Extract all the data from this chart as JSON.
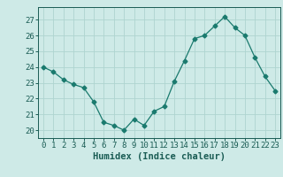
{
  "x": [
    0,
    1,
    2,
    3,
    4,
    5,
    6,
    7,
    8,
    9,
    10,
    11,
    12,
    13,
    14,
    15,
    16,
    17,
    18,
    19,
    20,
    21,
    22,
    23
  ],
  "y": [
    24.0,
    23.7,
    23.2,
    22.9,
    22.7,
    21.8,
    20.5,
    20.3,
    20.0,
    20.7,
    20.3,
    21.2,
    21.5,
    23.1,
    24.4,
    25.8,
    26.0,
    26.6,
    27.2,
    26.5,
    26.0,
    24.6,
    23.4,
    22.5
  ],
  "line_color": "#1a7a6e",
  "marker": "D",
  "marker_size": 2.5,
  "bg_color": "#ceeae7",
  "grid_color": "#aed4d0",
  "xlabel": "Humidex (Indice chaleur)",
  "ylim": [
    19.5,
    27.8
  ],
  "xlim": [
    -0.5,
    23.5
  ],
  "yticks": [
    20,
    21,
    22,
    23,
    24,
    25,
    26,
    27
  ],
  "xticks": [
    0,
    1,
    2,
    3,
    4,
    5,
    6,
    7,
    8,
    9,
    10,
    11,
    12,
    13,
    14,
    15,
    16,
    17,
    18,
    19,
    20,
    21,
    22,
    23
  ],
  "text_color": "#1a5c54",
  "axis_color": "#1a5c54",
  "label_fontsize": 7.5,
  "tick_fontsize": 6.5
}
